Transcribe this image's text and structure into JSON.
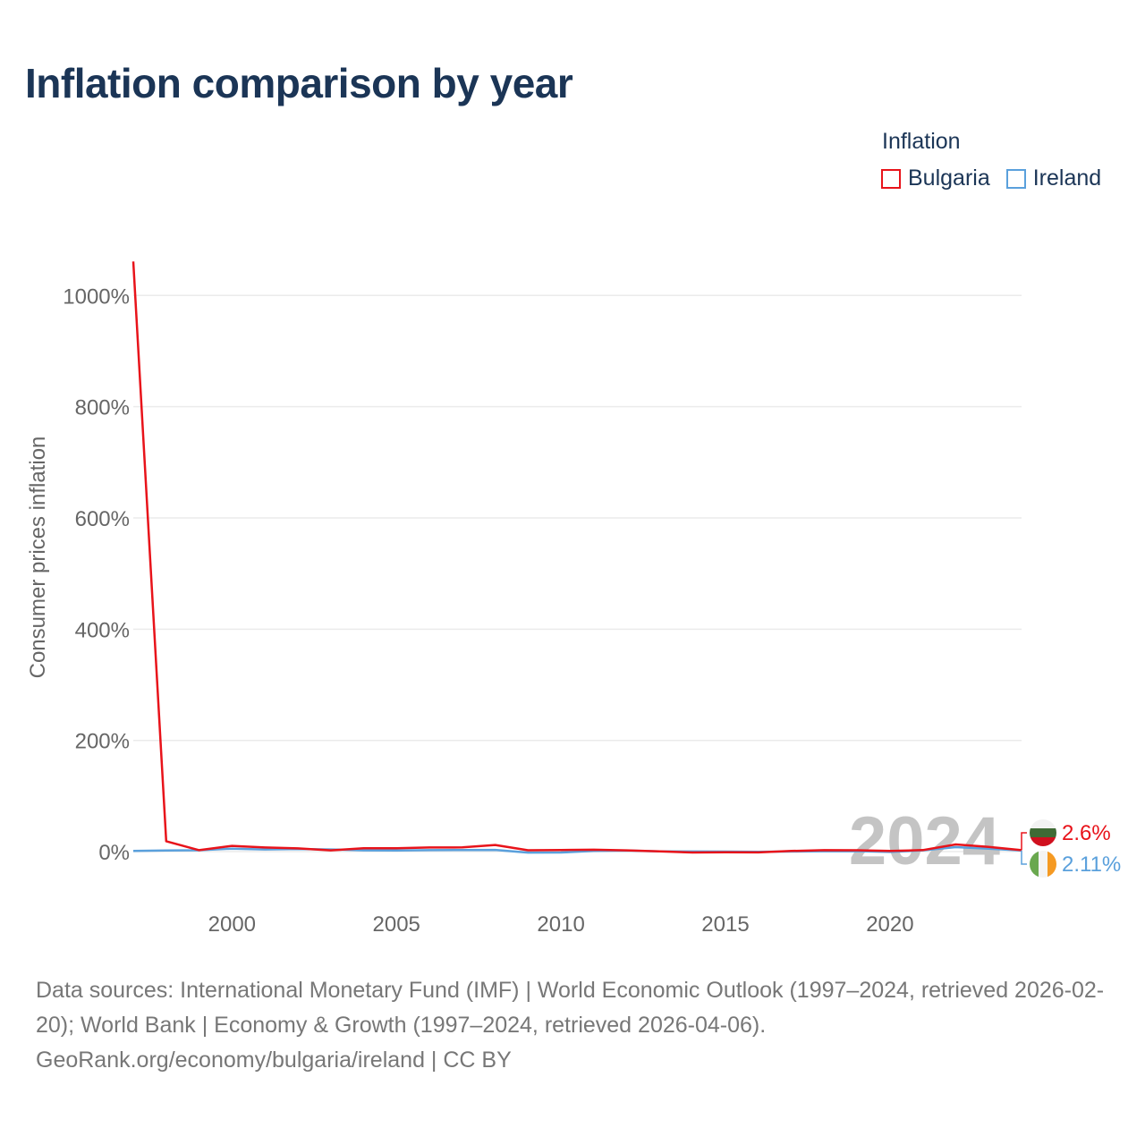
{
  "title": "Inflation comparison by year",
  "legend": {
    "title": "Inflation",
    "items": [
      {
        "label": "Bulgaria",
        "color": "#e8131a"
      },
      {
        "label": "Ireland",
        "color": "#5aa0dc"
      }
    ]
  },
  "source": {
    "line1": "Data sources: International Monetary Fund (IMF) | World Economic Outlook (1997–2024, retrieved 2026-02-20); World Bank | Economy & Growth (1997–2024, retrieved 2026-04-06).",
    "line2": "GeoRank.org/economy/bulgaria/ireland | CC BY"
  },
  "chart_data": {
    "type": "line",
    "title": "Inflation comparison by year",
    "xlabel": "",
    "ylabel": "Consumer prices inflation",
    "x": [
      1997,
      1998,
      1999,
      2000,
      2001,
      2002,
      2003,
      2004,
      2005,
      2006,
      2007,
      2008,
      2009,
      2010,
      2011,
      2012,
      2013,
      2014,
      2015,
      2016,
      2017,
      2018,
      2019,
      2020,
      2021,
      2022,
      2023,
      2024
    ],
    "xlim": [
      1997,
      2024
    ],
    "ylim": [
      -90,
      1060
    ],
    "x_ticks": [
      2000,
      2005,
      2010,
      2015,
      2020
    ],
    "x_tick_labels": [
      "2000",
      "2005",
      "2010",
      "2015",
      "2020"
    ],
    "y_ticks": [
      0,
      200,
      400,
      600,
      800,
      1000
    ],
    "y_tick_labels": [
      "0%",
      "200%",
      "400%",
      "600%",
      "800%",
      "1000%"
    ],
    "grid": true,
    "year_watermark": "2024",
    "series": [
      {
        "name": "Bulgaria",
        "color": "#e8131a",
        "values": [
          1061.2,
          18.7,
          2.6,
          10.3,
          7.4,
          5.8,
          2.3,
          6.1,
          6.0,
          7.4,
          7.6,
          12.0,
          2.5,
          3.0,
          3.4,
          2.4,
          0.4,
          -1.6,
          -1.1,
          -1.3,
          1.2,
          2.6,
          2.5,
          1.2,
          2.8,
          13.0,
          8.6,
          2.6
        ],
        "end_label": "2.6%"
      },
      {
        "name": "Ireland",
        "color": "#5aa0dc",
        "values": [
          1.3,
          2.1,
          2.5,
          5.3,
          4.0,
          4.7,
          4.0,
          2.3,
          2.2,
          2.7,
          2.9,
          3.1,
          -1.7,
          -1.6,
          1.2,
          1.9,
          0.5,
          0.3,
          0.0,
          -0.2,
          0.3,
          0.7,
          0.9,
          -0.5,
          2.4,
          8.1,
          5.2,
          2.11
        ],
        "end_label": "2.11%"
      }
    ]
  }
}
